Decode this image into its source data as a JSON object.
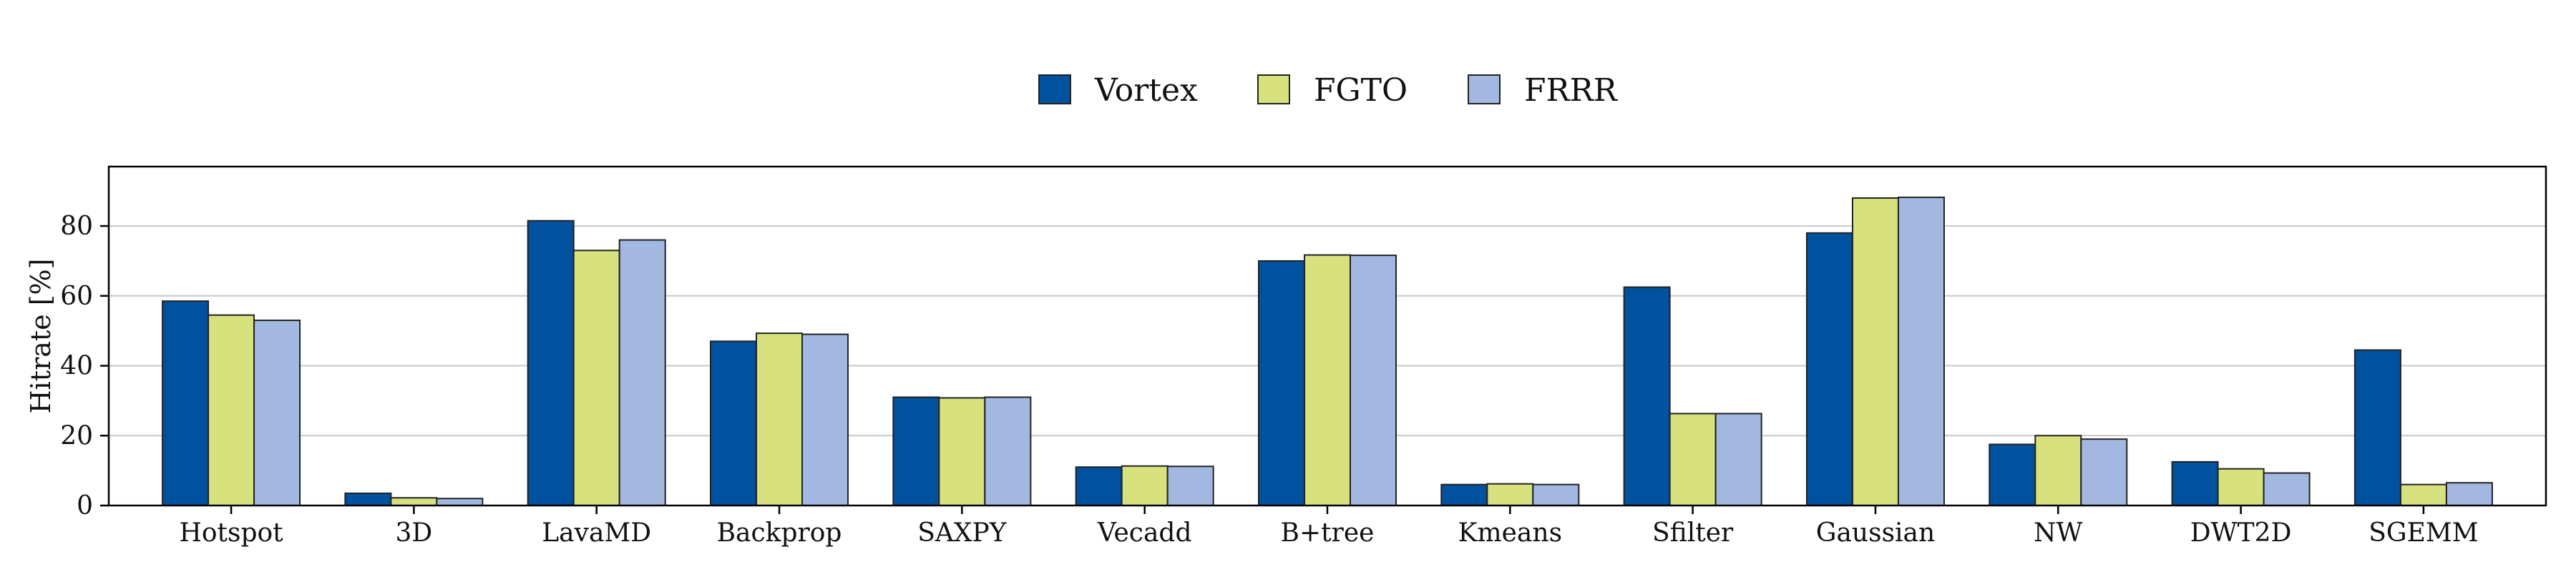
{
  "chart_data": {
    "type": "bar",
    "title": "",
    "xlabel": "",
    "ylabel": "Hitrate [%]",
    "ylim": [
      0,
      97
    ],
    "yticks": [
      0,
      20,
      40,
      60,
      80
    ],
    "grid": "horizontal",
    "legend_position": "top-center",
    "categories": [
      "Hotspot",
      "3D",
      "LavaMD",
      "Backprop",
      "SAXPY",
      "Vecadd",
      "B+tree",
      "Kmeans",
      "Sfilter",
      "Gaussian",
      "NW",
      "DWT2D",
      "SGEMM"
    ],
    "series": [
      {
        "name": "Vortex",
        "color": "#00519e",
        "values": [
          58.5,
          3.5,
          81.5,
          47,
          31,
          11,
          70,
          6,
          62.5,
          78,
          17.5,
          12.5,
          44.5
        ]
      },
      {
        "name": "FGTO",
        "color": "#d7e17d",
        "values": [
          54.5,
          2.2,
          73,
          49.3,
          30.8,
          11.3,
          71.7,
          6.2,
          26.3,
          88,
          20,
          10.5,
          6
        ]
      },
      {
        "name": "FRRR",
        "color": "#a2b8e0",
        "values": [
          53,
          2,
          76,
          49,
          31,
          11.2,
          71.6,
          6,
          26.3,
          88.2,
          19,
          9.3,
          6.5
        ]
      }
    ]
  }
}
